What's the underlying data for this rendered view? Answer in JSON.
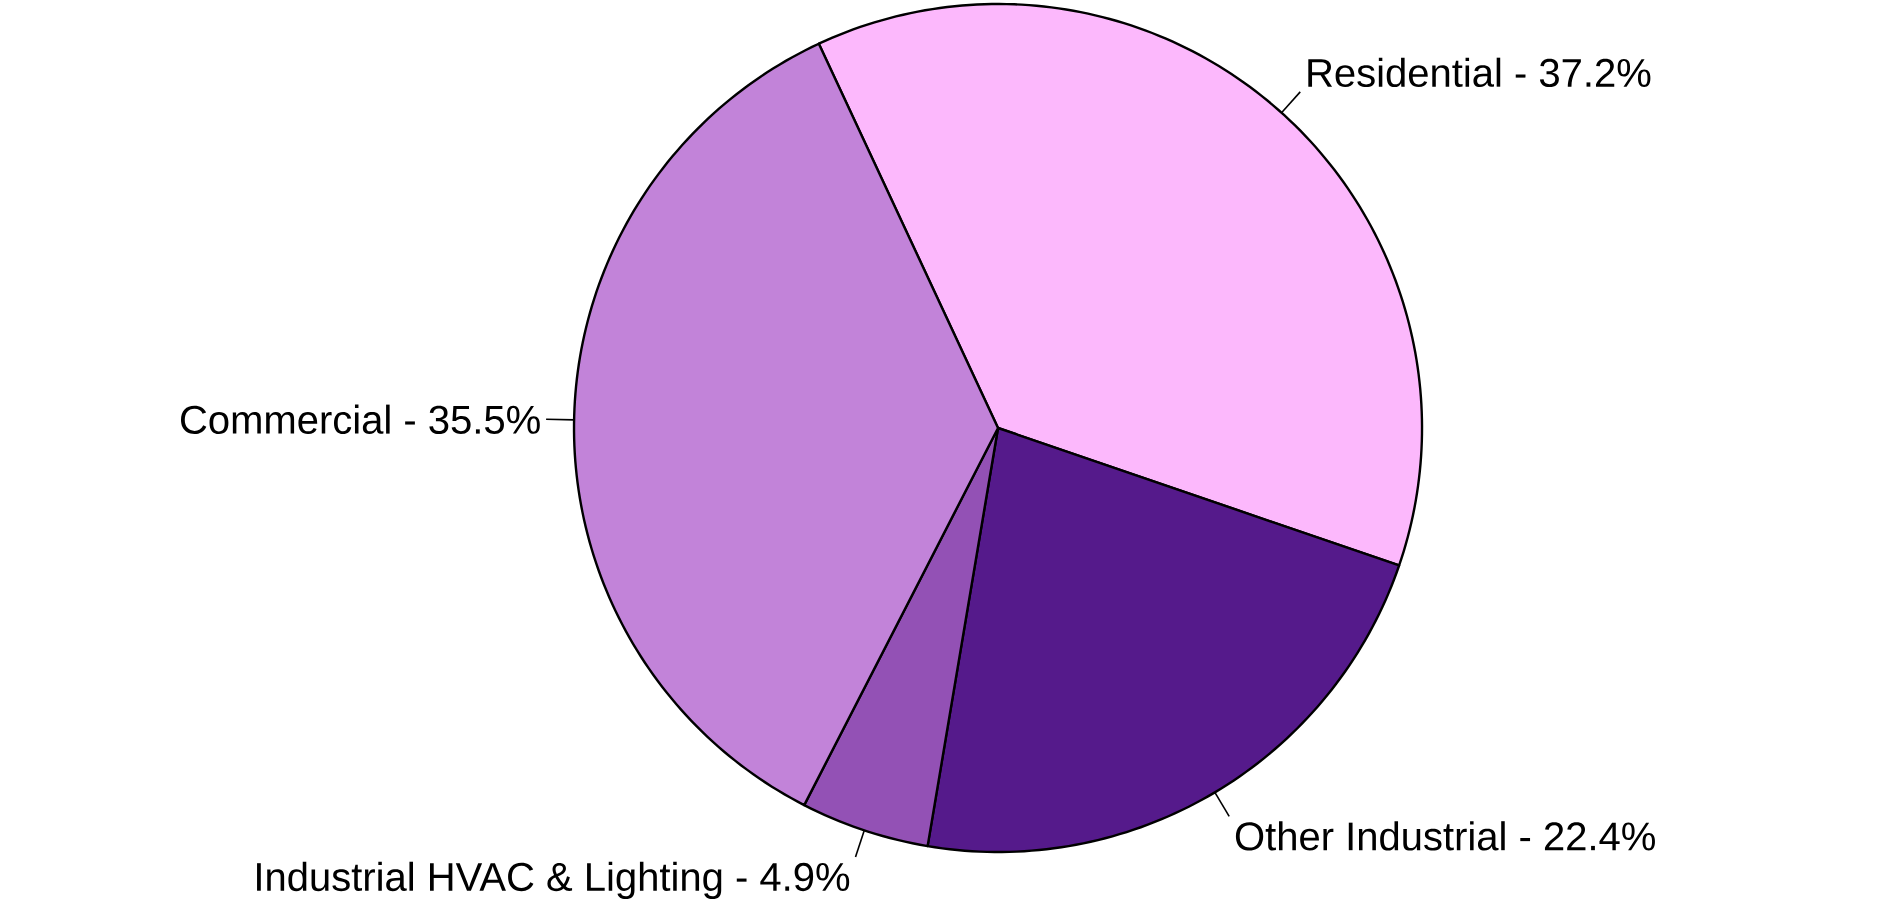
{
  "chart_data": {
    "type": "pie",
    "categories": [
      "Residential - 37.2%",
      "Other Industrial - 22.4%",
      "Industrial HVAC & Lighting - 4.9%",
      "Commercial - 35.5%"
    ],
    "values": [
      37.2,
      22.4,
      4.9,
      35.5
    ],
    "colors": [
      "#fcb8fc",
      "#551a8b",
      "#9351b5",
      "#c283d9"
    ]
  }
}
